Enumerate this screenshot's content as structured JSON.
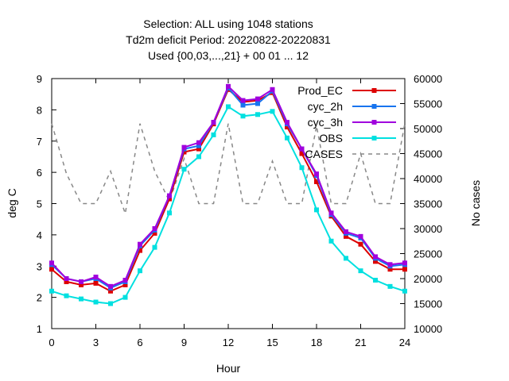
{
  "chart_data": {
    "type": "line",
    "title": [
      "Selection: ALL using  1048 stations",
      "Td2m deficit   Period: 20220822-20220831",
      "Used {00,03,...,21} + 00 01 ... 12"
    ],
    "xlabel": "Hour",
    "ylabel": "deg C",
    "y2label": "No cases",
    "xlim": [
      0,
      24
    ],
    "ylim": [
      1,
      9
    ],
    "y2lim": [
      10000,
      60000
    ],
    "xticks": [
      "0",
      "3",
      "6",
      "9",
      "12",
      "15",
      "18",
      "21",
      "24"
    ],
    "yticks": [
      "1",
      "2",
      "3",
      "4",
      "5",
      "6",
      "7",
      "8",
      "9"
    ],
    "y2ticks": [
      "10000",
      "15000",
      "20000",
      "25000",
      "30000",
      "35000",
      "40000",
      "45000",
      "50000",
      "55000",
      "60000"
    ],
    "grid": false,
    "legend_position": "top-right",
    "x": [
      0,
      1,
      2,
      3,
      4,
      5,
      6,
      7,
      8,
      9,
      10,
      11,
      12,
      13,
      14,
      15,
      16,
      17,
      18,
      19,
      20,
      21,
      22,
      23,
      24
    ],
    "series": [
      {
        "name": "Prod_EC",
        "color": "#dd0000",
        "marker": "square",
        "axis": "y",
        "values": [
          2.9,
          2.5,
          2.4,
          2.45,
          2.2,
          2.4,
          3.5,
          4.05,
          5.15,
          6.65,
          6.75,
          7.55,
          8.65,
          8.25,
          8.3,
          8.55,
          7.45,
          6.6,
          5.7,
          4.6,
          3.95,
          3.7,
          3.15,
          2.9,
          2.9
        ]
      },
      {
        "name": "cyc_2h",
        "color": "#1874ee",
        "marker": "square",
        "axis": "y",
        "values": [
          3.05,
          2.6,
          2.5,
          2.6,
          2.3,
          2.5,
          3.65,
          4.15,
          5.25,
          6.75,
          6.85,
          7.6,
          8.7,
          8.15,
          8.2,
          8.6,
          7.55,
          6.75,
          5.9,
          4.65,
          4.05,
          3.9,
          3.25,
          3.0,
          3.05
        ]
      },
      {
        "name": "cyc_3h",
        "color": "#a000dd",
        "marker": "square",
        "axis": "y",
        "values": [
          3.1,
          2.6,
          2.5,
          2.65,
          2.35,
          2.55,
          3.7,
          4.2,
          5.25,
          6.8,
          6.95,
          7.6,
          8.75,
          8.3,
          8.35,
          8.65,
          7.6,
          6.75,
          5.95,
          4.7,
          4.1,
          3.95,
          3.3,
          3.05,
          3.1
        ]
      },
      {
        "name": "OBS",
        "color": "#00e0e0",
        "marker": "square",
        "axis": "y",
        "values": [
          2.2,
          2.05,
          1.95,
          1.85,
          1.8,
          2.0,
          2.85,
          3.6,
          4.7,
          6.1,
          6.5,
          7.2,
          8.1,
          7.8,
          7.85,
          7.95,
          7.1,
          6.15,
          4.8,
          3.8,
          3.25,
          2.85,
          2.55,
          2.35,
          2.2
        ]
      },
      {
        "name": "CASES",
        "color": "#888888",
        "marker": "none",
        "dash": true,
        "axis": "y2",
        "values": [
          51000,
          41000,
          35000,
          35000,
          41500,
          33000,
          51000,
          41500,
          35500,
          44000,
          35000,
          35000,
          51000,
          35000,
          35000,
          43500,
          35000,
          35000,
          50500,
          35000,
          35000,
          45000,
          35000,
          35000,
          51000
        ]
      }
    ]
  }
}
